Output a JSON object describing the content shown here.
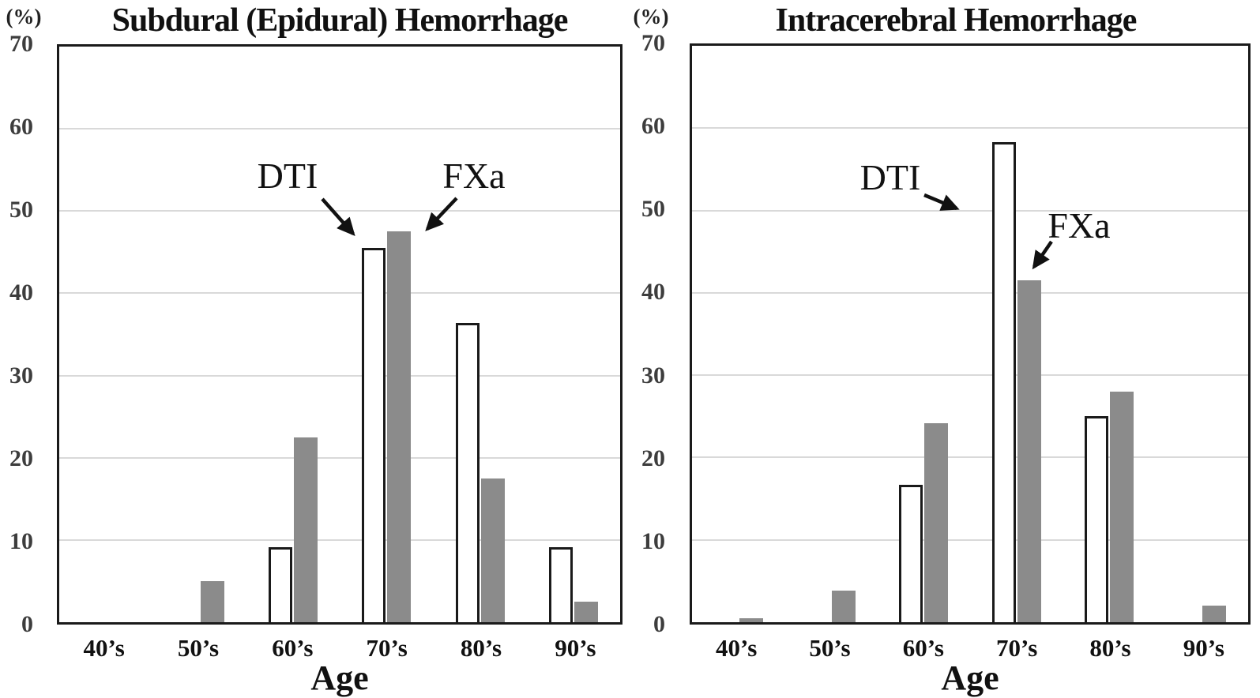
{
  "figure": {
    "y_axis_unit": "(%)",
    "x_axis_title": "Age"
  },
  "y_ticks": [
    "70",
    "60",
    "50",
    "40",
    "30",
    "20",
    "10",
    "0"
  ],
  "colors": {
    "dti_fill": "#ffffff",
    "dti_border": "#1a1a1a",
    "fxa_fill": "#8b8b8b",
    "gridline": "#d9d9d9",
    "axis": "#1a1a1a"
  },
  "chart_data": [
    {
      "type": "bar",
      "title": "Subdural (Epidural) Hemorrhage",
      "xlabel": "Age",
      "ylabel": "(%)",
      "ylim": [
        0,
        70
      ],
      "y_tick_step": 10,
      "grid": true,
      "legend_style": "inline text annotations with arrows pointing to 70's bars",
      "categories": [
        "40’s",
        "50’s",
        "60’s",
        "70’s",
        "80’s",
        "90’s"
      ],
      "series": [
        {
          "name": "DTI",
          "fill": "white-outlined",
          "values": [
            0,
            0,
            9.1,
            45.5,
            36.4,
            9.1
          ]
        },
        {
          "name": "FXa",
          "fill": "gray",
          "values": [
            0,
            5.0,
            22.5,
            47.5,
            17.5,
            2.5
          ]
        }
      ]
    },
    {
      "type": "bar",
      "title": "Intracerebral Hemorrhage",
      "xlabel": "Age",
      "ylabel": "(%)",
      "ylim": [
        0,
        70
      ],
      "y_tick_step": 10,
      "grid": true,
      "legend_style": "inline text annotations with arrows pointing to 70's bars",
      "categories": [
        "40’s",
        "50’s",
        "60’s",
        "70’s",
        "80’s",
        "90’s"
      ],
      "series": [
        {
          "name": "DTI",
          "fill": "white-outlined",
          "values": [
            0,
            0,
            16.7,
            58.3,
            25.0,
            0
          ]
        },
        {
          "name": "FXa",
          "fill": "gray",
          "values": [
            0.5,
            3.8,
            24.2,
            41.5,
            28.0,
            2.0
          ]
        }
      ]
    }
  ]
}
